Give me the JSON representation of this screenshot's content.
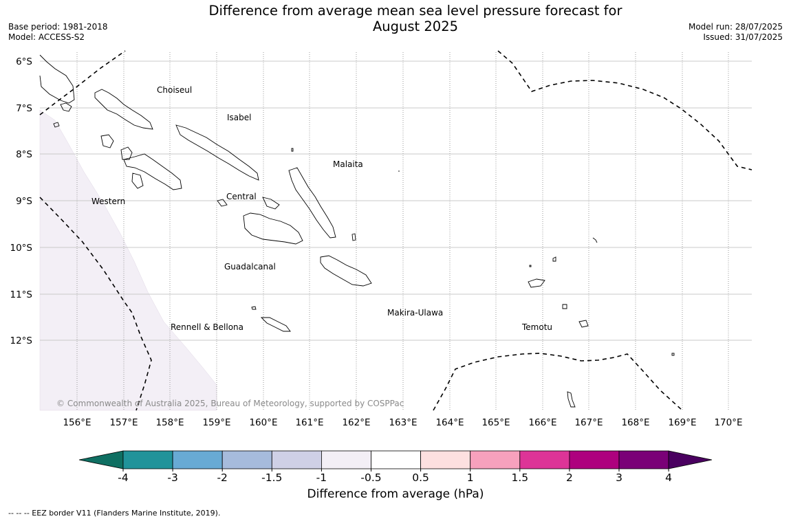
{
  "title": {
    "line1": "Difference from average mean sea level pressure forecast for",
    "line2": "August 2025"
  },
  "meta_left": {
    "base_period": "Base period: 1981-2018",
    "model": "Model: ACCESS-S2"
  },
  "meta_right": {
    "model_run": "Model run: 28/07/2025",
    "issued": "Issued: 31/07/2025"
  },
  "map": {
    "lat_ticks": [
      "6°S",
      "7°S",
      "8°S",
      "9°S",
      "10°S",
      "11°S",
      "12°S"
    ],
    "lon_ticks": [
      "156°E",
      "157°E",
      "158°E",
      "159°E",
      "160°E",
      "161°E",
      "162°E",
      "163°E",
      "164°E",
      "165°E",
      "166°E",
      "167°E",
      "168°E",
      "169°E",
      "170°E"
    ],
    "province_labels": [
      {
        "name": "Choiseul",
        "lon": 158.1,
        "lat": -6.65
      },
      {
        "name": "Isabel",
        "lon": 159.5,
        "lat": -7.2
      },
      {
        "name": "Malaita",
        "lon": 161.5,
        "lat": -8.2
      },
      {
        "name": "Central",
        "lon": 159.5,
        "lat": -8.9
      },
      {
        "name": "Western",
        "lon": 155.9,
        "lat": -9.0
      },
      {
        "name": "Guadalcanal",
        "lon": 159.7,
        "lat": -10.4
      },
      {
        "name": "Makira-Ulawa",
        "lon": 163.2,
        "lat": -11.4
      },
      {
        "name": "Rennell & Bellona",
        "lon": 158.8,
        "lat": -11.7
      },
      {
        "name": "Temotu",
        "lon": 165.9,
        "lat": -11.7
      }
    ],
    "shading": {
      "category": "-1 to -0.5",
      "color": "#f3eff6"
    },
    "copyright": "© Commonwealth of Australia 2025, Bureau of Meteorology, supported by COSPPac"
  },
  "colorbar": {
    "label": "Difference from average (hPa)",
    "ticks": [
      "-4",
      "-3",
      "-2",
      "-1.5",
      "-1",
      "-0.5",
      "0.5",
      "1",
      "1.5",
      "2",
      "3",
      "4"
    ],
    "colors": [
      "#0f6f62",
      "#21939a",
      "#68aad4",
      "#a6bbdc",
      "#cfd0e6",
      "#f3eff6",
      "#ffffff",
      "#fde0e0",
      "#f7a1bd",
      "#dd3497",
      "#ae017e",
      "#7a0177",
      "#4a0060"
    ]
  },
  "eez_note": "--  --  -- EEZ border V11 (Flanders Marine Institute, 2019)."
}
